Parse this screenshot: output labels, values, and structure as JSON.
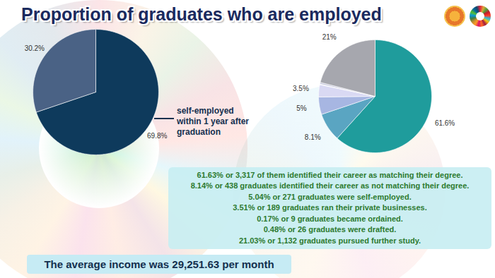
{
  "title": "Proportion of graduates who are employed",
  "caption": "The average income was 29,251.63 per month",
  "chart_data": [
    {
      "type": "pie",
      "values": [
        69.8,
        30.2
      ],
      "value_labels": [
        "69.8%",
        "30.2%"
      ],
      "colors": [
        "#0e3a5c",
        "#4a6285"
      ],
      "data_labels": true,
      "annotations": [
        "self-employed within 1 year after graduation"
      ]
    },
    {
      "type": "pie",
      "values": [
        61.6,
        8.1,
        5,
        3.5,
        0.17,
        0.48,
        21
      ],
      "value_labels": [
        "61.6%",
        "8.1%",
        "5%",
        "3.5%",
        null,
        null,
        "21%"
      ],
      "colors": [
        "#1f9c9c",
        "#5aa5c2",
        "#a7b6e2",
        "#d9d9f3",
        "#f0f0ff",
        "#c7c8dc",
        "#a6a7ae"
      ],
      "data_labels": true,
      "annotations": [
        "61.63% or 3,317 of them identified their career as matching their degree.",
        "8.14% or 438 graduates identified their career as not matching their degree.",
        "5.04% or 271 graduates were self-employed.",
        "3.51% or 189 graduates ran their private businesses.",
        "0.17% or 9 graduates became ordained.",
        "0.48% or 26 graduates were drafted.",
        "21.03% or 1,132 graduates pursued further study."
      ]
    }
  ]
}
